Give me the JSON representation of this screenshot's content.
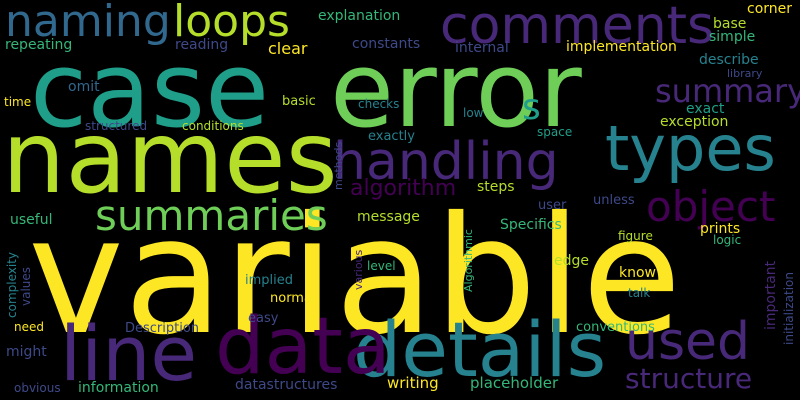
{
  "background_color": "#000000",
  "palette": {
    "yellow": "#fde725",
    "yellow_green": "#b5de2b",
    "green": "#6ece58",
    "light_green": "#35b779",
    "teal_green": "#1f9e89",
    "teal": "#26828e",
    "blue_teal": "#31688e",
    "indigo": "#3e4989",
    "purple": "#482878",
    "dark_purple": "#440154"
  },
  "words": [
    {
      "text": "variable",
      "color": "#fde725"
    },
    {
      "text": "case",
      "color": "#1f9e89"
    },
    {
      "text": "error",
      "color": "#6ece58"
    },
    {
      "text": "names",
      "color": "#b5de2b"
    },
    {
      "text": "details",
      "color": "#26828e"
    },
    {
      "text": "line",
      "color": "#482878"
    },
    {
      "text": "data",
      "color": "#440154"
    },
    {
      "text": "types",
      "color": "#26828e"
    },
    {
      "text": "handling",
      "color": "#482878"
    },
    {
      "text": "comments",
      "color": "#482878"
    },
    {
      "text": "used",
      "color": "#482878"
    },
    {
      "text": "naming",
      "color": "#31688e"
    },
    {
      "text": "loops",
      "color": "#b5de2b"
    },
    {
      "text": "summaries",
      "color": "#6ece58"
    },
    {
      "text": "object",
      "color": "#440154"
    },
    {
      "text": "summary",
      "color": "#482878"
    },
    {
      "text": "structure",
      "color": "#482878"
    },
    {
      "text": "s",
      "color": "#1f9e89"
    },
    {
      "text": "algorithm",
      "color": "#440154"
    },
    {
      "text": "explanation",
      "color": "#35b779"
    },
    {
      "text": "repeating",
      "color": "#35b779"
    },
    {
      "text": "reading",
      "color": "#3e4989"
    },
    {
      "text": "clear",
      "color": "#fde725"
    },
    {
      "text": "constants",
      "color": "#3e4989"
    },
    {
      "text": "internal",
      "color": "#3e4989"
    },
    {
      "text": "implementation",
      "color": "#fde725"
    },
    {
      "text": "corner",
      "color": "#fde725"
    },
    {
      "text": "base",
      "color": "#b5de2b"
    },
    {
      "text": "simple",
      "color": "#35b779"
    },
    {
      "text": "describe",
      "color": "#26828e"
    },
    {
      "text": "library",
      "color": "#3e4989"
    },
    {
      "text": "exact",
      "color": "#1f9e89"
    },
    {
      "text": "exception",
      "color": "#b5de2b"
    },
    {
      "text": "low",
      "color": "#26828e"
    },
    {
      "text": "space",
      "color": "#1f9e89"
    },
    {
      "text": "omit",
      "color": "#31688e"
    },
    {
      "text": "time",
      "color": "#fde725"
    },
    {
      "text": "basic",
      "color": "#b5de2b"
    },
    {
      "text": "checks",
      "color": "#26828e"
    },
    {
      "text": "structured",
      "color": "#3e4989"
    },
    {
      "text": "conditions",
      "color": "#b5de2b"
    },
    {
      "text": "exactly",
      "color": "#26828e"
    },
    {
      "text": "methods",
      "color": "#3e4989"
    },
    {
      "text": "steps",
      "color": "#b5de2b"
    },
    {
      "text": "useful",
      "color": "#35b779"
    },
    {
      "text": "message",
      "color": "#b5de2b"
    },
    {
      "text": "Specifics",
      "color": "#35b779"
    },
    {
      "text": "user",
      "color": "#3e4989"
    },
    {
      "text": "unless",
      "color": "#3e4989"
    },
    {
      "text": "prints",
      "color": "#fde725"
    },
    {
      "text": "logic",
      "color": "#35b779"
    },
    {
      "text": "figure",
      "color": "#b5de2b"
    },
    {
      "text": "complexity",
      "color": "#26828e"
    },
    {
      "text": "values",
      "color": "#3e4989"
    },
    {
      "text": "implied",
      "color": "#26828e"
    },
    {
      "text": "level",
      "color": "#35b779"
    },
    {
      "text": "various",
      "color": "#482878"
    },
    {
      "text": "Algorithmic",
      "color": "#35b779"
    },
    {
      "text": "edge",
      "color": "#b5de2b"
    },
    {
      "text": "know",
      "color": "#fde725"
    },
    {
      "text": "important",
      "color": "#482878"
    },
    {
      "text": "initialization",
      "color": "#3e4989"
    },
    {
      "text": "talk",
      "color": "#26828e"
    },
    {
      "text": "normal",
      "color": "#fde725"
    },
    {
      "text": "easy",
      "color": "#3e4989"
    },
    {
      "text": "need",
      "color": "#fde725"
    },
    {
      "text": "Description",
      "color": "#3e4989"
    },
    {
      "text": "conventions",
      "color": "#35b779"
    },
    {
      "text": "might",
      "color": "#3e4989"
    },
    {
      "text": "obvious",
      "color": "#3e4989"
    },
    {
      "text": "information",
      "color": "#35b779"
    },
    {
      "text": "datastructures",
      "color": "#3e4989"
    },
    {
      "text": "writing",
      "color": "#fde725"
    },
    {
      "text": "placeholder",
      "color": "#35b779"
    }
  ]
}
